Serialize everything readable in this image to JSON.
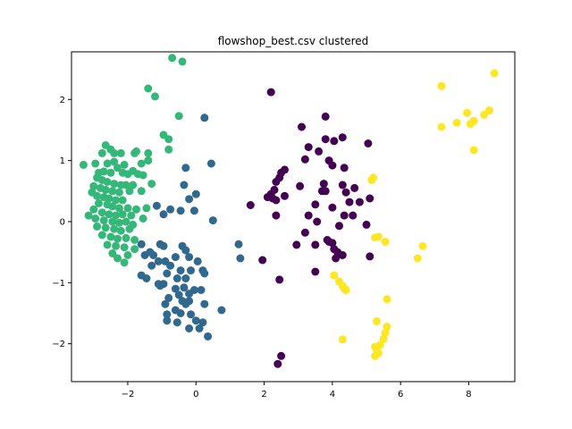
{
  "chart_data": {
    "type": "scatter",
    "title": "flowshop_best.csv clustered",
    "xlabel": "",
    "ylabel": "",
    "xlim": [
      -3.65,
      9.35
    ],
    "ylim": [
      -2.62,
      2.78
    ],
    "xticks": [
      -2,
      0,
      2,
      4,
      6,
      8
    ],
    "yticks": [
      -2,
      -1,
      0,
      1,
      2
    ],
    "grid": false,
    "series": [
      {
        "color": "#440154",
        "points": [
          [
            2.2,
            2.12
          ],
          [
            3.8,
            1.72
          ],
          [
            3.1,
            1.55
          ],
          [
            4.3,
            1.38
          ],
          [
            3.8,
            1.35
          ],
          [
            4.05,
            1.32
          ],
          [
            5.05,
            1.28
          ],
          [
            3.3,
            1.22
          ],
          [
            3.6,
            1.15
          ],
          [
            3.2,
            1.02
          ],
          [
            3.9,
            1.0
          ],
          [
            4.0,
            0.92
          ],
          [
            4.35,
            0.88
          ],
          [
            2.6,
            0.85
          ],
          [
            2.5,
            0.8
          ],
          [
            2.45,
            0.72
          ],
          [
            2.35,
            0.65
          ],
          [
            3.75,
            0.62
          ],
          [
            4.3,
            0.6
          ],
          [
            3.05,
            0.58
          ],
          [
            4.65,
            0.55
          ],
          [
            2.3,
            0.52
          ],
          [
            3.8,
            0.5
          ],
          [
            3.7,
            0.5
          ],
          [
            4.4,
            0.48
          ],
          [
            2.2,
            0.45
          ],
          [
            2.1,
            0.4
          ],
          [
            2.25,
            0.38
          ],
          [
            2.6,
            0.42
          ],
          [
            2.35,
            0.35
          ],
          [
            4.5,
            0.32
          ],
          [
            4.8,
            0.32
          ],
          [
            5.1,
            0.38
          ],
          [
            1.6,
            0.27
          ],
          [
            3.5,
            0.28
          ],
          [
            4.0,
            0.23
          ],
          [
            2.35,
            0.1
          ],
          [
            3.3,
            0.1
          ],
          [
            4.35,
            0.1
          ],
          [
            4.6,
            0.1
          ],
          [
            3.55,
            0.0
          ],
          [
            5.0,
            -0.05
          ],
          [
            4.2,
            -0.07
          ],
          [
            3.2,
            -0.18
          ],
          [
            3.85,
            -0.3
          ],
          [
            3.9,
            -0.33
          ],
          [
            4.0,
            -0.35
          ],
          [
            3.5,
            -0.38
          ],
          [
            2.95,
            -0.38
          ],
          [
            4.05,
            -0.45
          ],
          [
            4.15,
            -0.5
          ],
          [
            4.3,
            -0.55
          ],
          [
            5.1,
            -0.57
          ],
          [
            4.1,
            -0.6
          ],
          [
            1.95,
            -0.63
          ],
          [
            3.5,
            -0.82
          ],
          [
            2.45,
            -0.95
          ],
          [
            2.5,
            -2.2
          ],
          [
            2.4,
            -2.33
          ]
        ]
      },
      {
        "color": "#31688e",
        "points": [
          [
            0.25,
            1.7
          ],
          [
            0.45,
            0.95
          ],
          [
            -0.3,
            0.88
          ],
          [
            -0.35,
            0.6
          ],
          [
            0.0,
            0.45
          ],
          [
            -0.2,
            0.37
          ],
          [
            -1.15,
            0.26
          ],
          [
            -0.75,
            0.2
          ],
          [
            -0.45,
            0.18
          ],
          [
            -0.05,
            0.18
          ],
          [
            -0.95,
            0.12
          ],
          [
            0.5,
            0.02
          ],
          [
            -1.6,
            -0.37
          ],
          [
            -1.05,
            -0.37
          ],
          [
            -0.95,
            -0.4
          ],
          [
            -0.4,
            -0.4
          ],
          [
            -0.3,
            -0.47
          ],
          [
            -1.35,
            -0.5
          ],
          [
            -1.25,
            -0.55
          ],
          [
            -1.5,
            -0.55
          ],
          [
            -0.6,
            -0.58
          ],
          [
            -0.2,
            -0.58
          ],
          [
            -0.9,
            -0.65
          ],
          [
            -1.1,
            -0.65
          ],
          [
            -1.3,
            -0.72
          ],
          [
            -0.75,
            -0.72
          ],
          [
            0.05,
            -0.65
          ],
          [
            1.25,
            -0.37
          ],
          [
            1.3,
            -0.6
          ],
          [
            -0.45,
            -0.8
          ],
          [
            -0.15,
            -0.8
          ],
          [
            0.2,
            -0.8
          ],
          [
            0.25,
            -0.85
          ],
          [
            -0.85,
            -0.85
          ],
          [
            -1.6,
            -0.88
          ],
          [
            -1.45,
            -0.93
          ],
          [
            -0.55,
            -0.93
          ],
          [
            -0.3,
            -0.93
          ],
          [
            -1.1,
            -1.02
          ],
          [
            -1.05,
            -1.05
          ],
          [
            -0.95,
            -1.02
          ],
          [
            -0.6,
            -1.1
          ],
          [
            -0.35,
            -1.08
          ],
          [
            -0.05,
            -1.12
          ],
          [
            -0.2,
            -1.18
          ],
          [
            0.15,
            -1.12
          ],
          [
            -0.5,
            -1.2
          ],
          [
            -0.8,
            -1.25
          ],
          [
            -0.4,
            -1.3
          ],
          [
            -0.2,
            -1.3
          ],
          [
            -0.9,
            -1.35
          ],
          [
            -0.3,
            -1.35
          ],
          [
            0.25,
            -1.35
          ],
          [
            0.75,
            -1.45
          ],
          [
            -0.6,
            -1.45
          ],
          [
            -0.45,
            -1.5
          ],
          [
            -0.85,
            -1.52
          ],
          [
            -0.15,
            -1.52
          ],
          [
            -0.55,
            -1.65
          ],
          [
            0.2,
            -1.65
          ],
          [
            -0.85,
            -1.62
          ],
          [
            0.0,
            -1.62
          ],
          [
            0.1,
            -1.75
          ],
          [
            -0.2,
            -1.75
          ],
          [
            0.35,
            -1.88
          ]
        ]
      },
      {
        "color": "#35b779",
        "points": [
          [
            -0.7,
            2.68
          ],
          [
            -0.4,
            2.62
          ],
          [
            -1.4,
            2.18
          ],
          [
            -1.2,
            2.05
          ],
          [
            -0.5,
            1.73
          ],
          [
            -0.95,
            1.42
          ],
          [
            -0.8,
            1.35
          ],
          [
            -2.65,
            1.25
          ],
          [
            -2.5,
            1.18
          ],
          [
            -2.75,
            1.12
          ],
          [
            -2.4,
            1.12
          ],
          [
            -2.2,
            1.12
          ],
          [
            -1.8,
            1.12
          ],
          [
            -1.75,
            1.15
          ],
          [
            -1.4,
            1.12
          ],
          [
            -0.8,
            1.18
          ],
          [
            -3.3,
            0.93
          ],
          [
            -2.95,
            0.95
          ],
          [
            -2.6,
            0.95
          ],
          [
            -2.4,
            0.98
          ],
          [
            -2.1,
            0.93
          ],
          [
            -1.6,
            0.95
          ],
          [
            -1.4,
            1.0
          ],
          [
            -2.3,
            0.88
          ],
          [
            -1.85,
            0.83
          ],
          [
            -1.7,
            0.78
          ],
          [
            -1.55,
            0.76
          ],
          [
            -2.85,
            0.8
          ],
          [
            -2.7,
            0.82
          ],
          [
            -2.5,
            0.8
          ],
          [
            -2.15,
            0.8
          ],
          [
            -2.0,
            0.78
          ],
          [
            -1.3,
            0.62
          ],
          [
            -2.9,
            0.72
          ],
          [
            -2.75,
            0.68
          ],
          [
            -2.6,
            0.65
          ],
          [
            -2.4,
            0.62
          ],
          [
            -2.2,
            0.6
          ],
          [
            -2.05,
            0.6
          ],
          [
            -1.85,
            0.6
          ],
          [
            -3.0,
            0.58
          ],
          [
            -2.8,
            0.55
          ],
          [
            -2.65,
            0.52
          ],
          [
            -2.45,
            0.5
          ],
          [
            -2.25,
            0.48
          ],
          [
            -1.95,
            0.5
          ],
          [
            -1.6,
            0.5
          ],
          [
            -3.05,
            0.48
          ],
          [
            -2.9,
            0.42
          ],
          [
            -2.7,
            0.4
          ],
          [
            -2.55,
            0.38
          ],
          [
            -2.35,
            0.35
          ],
          [
            -2.15,
            0.35
          ],
          [
            -2.85,
            0.3
          ],
          [
            -2.6,
            0.28
          ],
          [
            -2.45,
            0.25
          ],
          [
            -2.25,
            0.22
          ],
          [
            -2.0,
            0.22
          ],
          [
            -1.75,
            0.2
          ],
          [
            -1.45,
            0.22
          ],
          [
            -1.55,
            0.05
          ],
          [
            -3.0,
            0.2
          ],
          [
            -2.75,
            0.15
          ],
          [
            -2.55,
            0.12
          ],
          [
            -2.35,
            0.1
          ],
          [
            -2.15,
            0.12
          ],
          [
            -1.9,
            0.1
          ],
          [
            -3.15,
            0.1
          ],
          [
            -2.95,
            0.05
          ],
          [
            -2.7,
            0.02
          ],
          [
            -2.45,
            0.0
          ],
          [
            -2.25,
            -0.02
          ],
          [
            -2.05,
            0.0
          ],
          [
            -1.85,
            -0.05
          ],
          [
            -2.9,
            -0.08
          ],
          [
            -2.65,
            -0.1
          ],
          [
            -2.4,
            -0.12
          ],
          [
            -2.2,
            -0.15
          ],
          [
            -1.95,
            -0.12
          ],
          [
            -2.75,
            -0.22
          ],
          [
            -2.5,
            -0.25
          ],
          [
            -2.3,
            -0.28
          ],
          [
            -2.05,
            -0.27
          ],
          [
            -1.8,
            -0.3
          ],
          [
            -2.6,
            -0.38
          ],
          [
            -2.35,
            -0.4
          ],
          [
            -2.1,
            -0.42
          ],
          [
            -2.45,
            -0.52
          ],
          [
            -2.0,
            -0.55
          ],
          [
            -1.8,
            -0.45
          ],
          [
            -2.3,
            -0.6
          ],
          [
            -2.1,
            -0.67
          ]
        ]
      },
      {
        "color": "#fde725",
        "points": [
          [
            7.2,
            2.22
          ],
          [
            8.75,
            2.43
          ],
          [
            7.95,
            1.78
          ],
          [
            8.6,
            1.82
          ],
          [
            8.45,
            1.75
          ],
          [
            8.15,
            1.65
          ],
          [
            8.05,
            1.6
          ],
          [
            7.65,
            1.62
          ],
          [
            7.2,
            1.55
          ],
          [
            8.15,
            1.17
          ],
          [
            5.2,
            0.72
          ],
          [
            5.15,
            0.68
          ],
          [
            5.25,
            -0.26
          ],
          [
            5.35,
            -0.25
          ],
          [
            5.55,
            -0.33
          ],
          [
            6.65,
            -0.4
          ],
          [
            6.5,
            -0.6
          ],
          [
            4.05,
            -0.88
          ],
          [
            4.2,
            -0.98
          ],
          [
            4.3,
            -1.05
          ],
          [
            4.35,
            -1.1
          ],
          [
            4.4,
            -1.12
          ],
          [
            5.6,
            -1.27
          ],
          [
            5.3,
            -1.63
          ],
          [
            5.6,
            -1.72
          ],
          [
            5.55,
            -1.82
          ],
          [
            5.5,
            -1.92
          ],
          [
            4.3,
            -1.93
          ],
          [
            5.4,
            -2.02
          ],
          [
            5.25,
            -2.05
          ],
          [
            5.3,
            -2.1
          ],
          [
            5.35,
            -2.15
          ],
          [
            5.25,
            -2.2
          ]
        ]
      }
    ]
  }
}
